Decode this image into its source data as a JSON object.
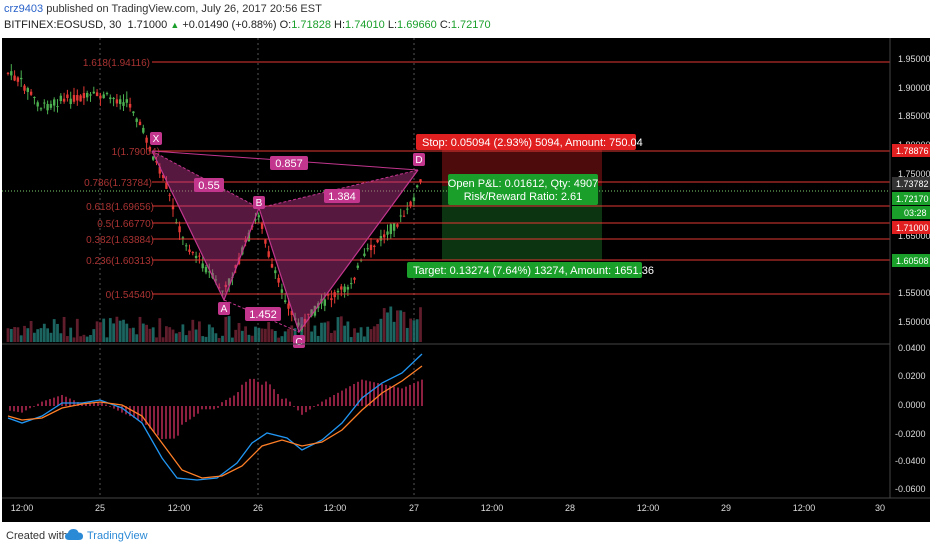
{
  "header": {
    "user": "crz9403",
    "published": "published on TradingView.com, July 26, 2017 20:56 EST",
    "symbol": "BITFINEX:EOSUSD, 30",
    "last": "1.71000",
    "change": "+0.01490 (+0.88%)",
    "o_label": "O:",
    "o": "1.71828",
    "h_label": "H:",
    "h": "1.74010",
    "l_label": "L:",
    "l": "1.69660",
    "c_label": "C:",
    "c": "1.72170"
  },
  "price_axis": {
    "ticks": [
      "1.95000",
      "1.90000",
      "1.85000",
      "1.80000",
      "1.75000",
      "1.65000",
      "1.55000",
      "1.50000"
    ],
    "badges": {
      "stop": "1.78876",
      "entry": "1.73782",
      "last": "1.72170",
      "countdown": "03:28",
      "current": "1.71000",
      "target": "1.60508"
    }
  },
  "macd_axis": {
    "ticks": [
      "0.0400",
      "0.0200",
      "0.0000",
      "-0.0200",
      "-0.0400",
      "-0.0600"
    ]
  },
  "time_axis": {
    "ticks": [
      "12:00",
      "25",
      "12:00",
      "26",
      "12:00",
      "27",
      "12:00",
      "28",
      "12:00",
      "29",
      "12:00",
      "30"
    ]
  },
  "fib_labels": [
    "1.618(1.94116)",
    "1(1.79004)",
    "0.786(1.73784)",
    "0.618(1.69656)",
    "0.5(1.66770)",
    "0.382(1.63884)",
    "0.236(1.60313)",
    "0(1.54540)"
  ],
  "pattern": {
    "points": [
      "X",
      "A",
      "B",
      "C",
      "D"
    ],
    "ratios": {
      "xa_b": "0.55",
      "xd": "0.857",
      "bc_d": "1.384",
      "ac": "1.452"
    }
  },
  "position": {
    "stop_label": "Stop: 0.05094 (2.93%) 5094, Amount: 750.04",
    "pnl_label": "Open P&L: 0.01612, Qty: 4907",
    "rr_label": "Risk/Reward Ratio: 2.61",
    "target_label": "Target: 0.13274 (7.64%) 13274, Amount: 1651.36"
  },
  "footer": {
    "created": "Created with",
    "brand": "TradingView"
  },
  "colors": {
    "bg": "#000000",
    "up": "#4caf50",
    "down": "#e53935",
    "fib": "#e53935",
    "pattern": "#c2368e",
    "macd": "#2196f3",
    "signal": "#ff7f27"
  }
}
